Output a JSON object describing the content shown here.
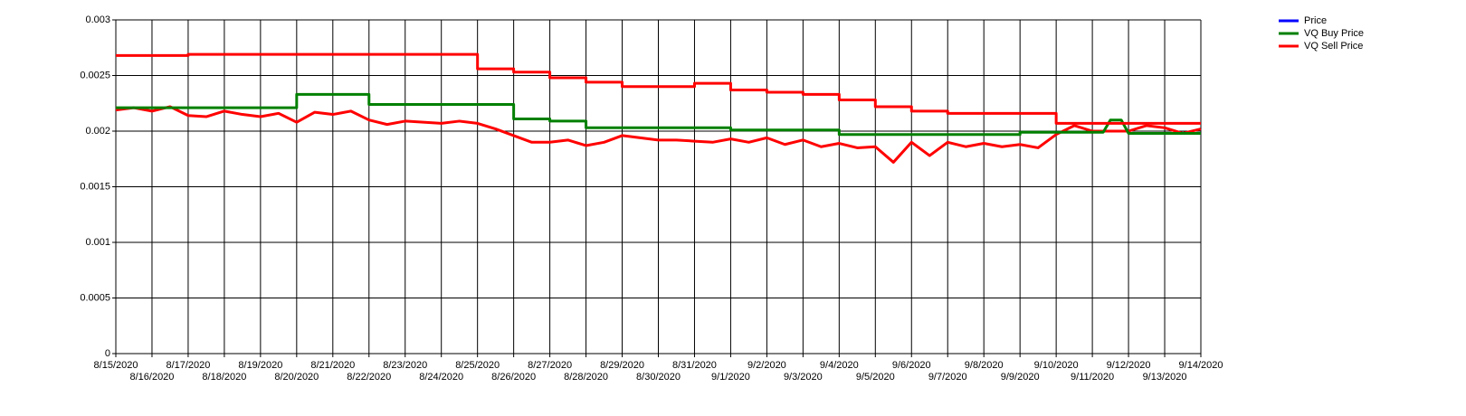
{
  "chart_data": {
    "type": "line",
    "xlim": [
      0,
      30
    ],
    "ylim": [
      0,
      0.003
    ],
    "yticks": [
      0,
      0.0005,
      0.001,
      0.0015,
      0.002,
      0.0025,
      0.003
    ],
    "xticks": [
      {
        "value": 0,
        "label": "8/15/2020"
      },
      {
        "value": 1,
        "label": "8/16/2020"
      },
      {
        "value": 2,
        "label": "8/17/2020"
      },
      {
        "value": 3,
        "label": "8/18/2020"
      },
      {
        "value": 4,
        "label": "8/19/2020"
      },
      {
        "value": 5,
        "label": "8/20/2020"
      },
      {
        "value": 6,
        "label": "8/21/2020"
      },
      {
        "value": 7,
        "label": "8/22/2020"
      },
      {
        "value": 8,
        "label": "8/23/2020"
      },
      {
        "value": 9,
        "label": "8/24/2020"
      },
      {
        "value": 10,
        "label": "8/25/2020"
      },
      {
        "value": 11,
        "label": "8/26/2020"
      },
      {
        "value": 12,
        "label": "8/27/2020"
      },
      {
        "value": 13,
        "label": "8/28/2020"
      },
      {
        "value": 14,
        "label": "8/29/2020"
      },
      {
        "value": 15,
        "label": "8/30/2020"
      },
      {
        "value": 16,
        "label": "8/31/2020"
      },
      {
        "value": 17,
        "label": "9/1/2020"
      },
      {
        "value": 18,
        "label": "9/2/2020"
      },
      {
        "value": 19,
        "label": "9/3/2020"
      },
      {
        "value": 20,
        "label": "9/4/2020"
      },
      {
        "value": 21,
        "label": "9/5/2020"
      },
      {
        "value": 22,
        "label": "9/6/2020"
      },
      {
        "value": 23,
        "label": "9/7/2020"
      },
      {
        "value": 24,
        "label": "9/8/2020"
      },
      {
        "value": 25,
        "label": "9/9/2020"
      },
      {
        "value": 26,
        "label": "9/10/2020"
      },
      {
        "value": 27,
        "label": "9/11/2020"
      },
      {
        "value": 28,
        "label": "9/12/2020"
      },
      {
        "value": 29,
        "label": "9/13/2020"
      },
      {
        "value": 30,
        "label": "9/14/2020"
      }
    ],
    "grid": true,
    "legend": "top-right",
    "series": [
      {
        "name": "Price",
        "color": "#0000ff",
        "line_color": "#ff0000",
        "x": [
          0,
          0.5,
          1,
          1.5,
          2,
          2.5,
          3,
          3.5,
          4,
          4.5,
          5,
          5.5,
          6,
          6.5,
          7,
          7.5,
          8,
          8.5,
          9,
          9.5,
          10,
          10.5,
          11,
          11.5,
          12,
          12.5,
          13,
          13.5,
          14,
          14.5,
          15,
          15.5,
          16,
          16.5,
          17,
          17.5,
          18,
          18.5,
          19,
          19.5,
          20,
          20.5,
          21,
          21.5,
          22,
          22.5,
          23,
          23.5,
          24,
          24.5,
          25,
          25.5,
          26,
          26.5,
          27,
          27.5,
          28,
          28.5,
          29,
          29.5,
          30
        ],
        "values": [
          0.00219,
          0.00221,
          0.00218,
          0.00222,
          0.00214,
          0.00213,
          0.00218,
          0.00215,
          0.00213,
          0.00216,
          0.00208,
          0.00217,
          0.00215,
          0.00218,
          0.0021,
          0.00206,
          0.00209,
          0.00208,
          0.00207,
          0.00209,
          0.00207,
          0.00202,
          0.00196,
          0.0019,
          0.0019,
          0.00192,
          0.00187,
          0.0019,
          0.00196,
          0.00194,
          0.00192,
          0.00192,
          0.00191,
          0.0019,
          0.00193,
          0.0019,
          0.00194,
          0.00188,
          0.00192,
          0.00186,
          0.00189,
          0.00185,
          0.00186,
          0.00172,
          0.0019,
          0.00178,
          0.0019,
          0.00186,
          0.00189,
          0.00186,
          0.00188,
          0.00185,
          0.00197,
          0.00205,
          0.002,
          0.002,
          0.002,
          0.00205,
          0.00203,
          0.00198,
          0.00202
        ]
      },
      {
        "name": "VQ Buy Price",
        "color": "#008000",
        "x": [
          0,
          5,
          5,
          7,
          7,
          11,
          11,
          12,
          12,
          13,
          13,
          17,
          17,
          20,
          20,
          25,
          25,
          27.3,
          27.5,
          27.8,
          28,
          30
        ],
        "values": [
          0.00221,
          0.00221,
          0.00233,
          0.00233,
          0.00224,
          0.00224,
          0.00211,
          0.00211,
          0.00209,
          0.00209,
          0.00203,
          0.00203,
          0.00201,
          0.00201,
          0.00197,
          0.00197,
          0.00199,
          0.00199,
          0.0021,
          0.0021,
          0.00198,
          0.00198
        ]
      },
      {
        "name": "VQ Sell Price",
        "color": "#ff0000",
        "x": [
          0,
          2,
          2,
          10,
          10,
          11,
          11,
          12,
          12,
          13,
          13,
          14,
          14,
          16,
          16,
          17,
          17,
          18,
          18,
          19,
          19,
          20,
          20,
          21,
          21,
          22,
          22,
          23,
          23,
          26,
          26,
          30
        ],
        "values": [
          0.00268,
          0.00268,
          0.00269,
          0.00269,
          0.00256,
          0.00256,
          0.00253,
          0.00253,
          0.00248,
          0.00248,
          0.00244,
          0.00244,
          0.0024,
          0.0024,
          0.00243,
          0.00243,
          0.00237,
          0.00237,
          0.00235,
          0.00235,
          0.00233,
          0.00233,
          0.00228,
          0.00228,
          0.00222,
          0.00222,
          0.00218,
          0.00218,
          0.00216,
          0.00216,
          0.00207,
          0.00207
        ]
      }
    ]
  }
}
